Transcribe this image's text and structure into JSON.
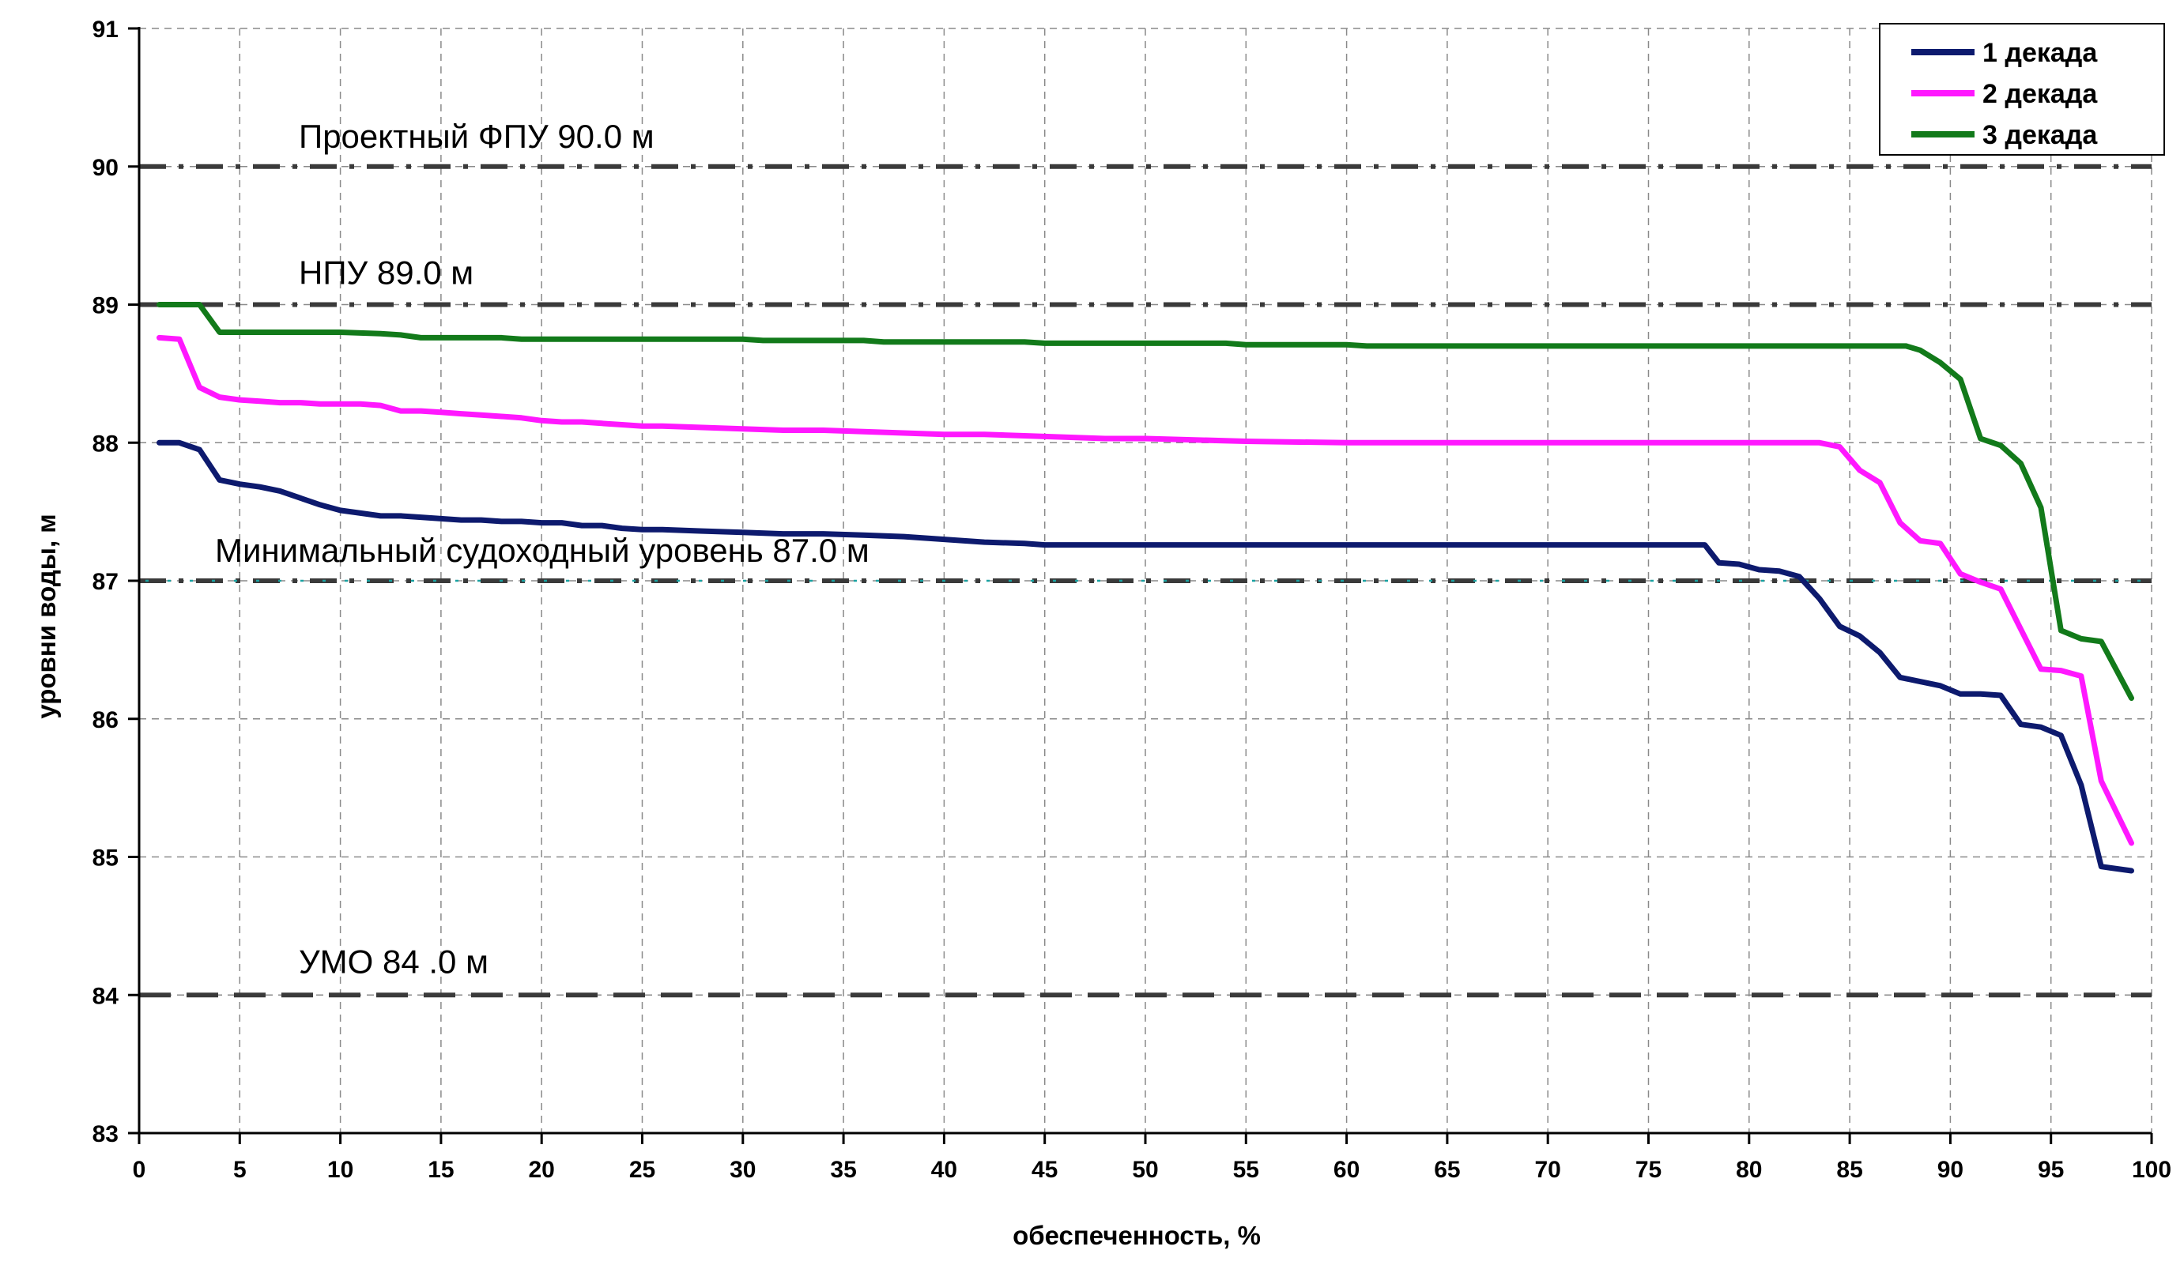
{
  "chart_data": {
    "type": "line",
    "title": "",
    "xlabel": "обеспеченность, %",
    "ylabel": "уровни воды, м",
    "xlim": [
      0,
      100
    ],
    "ylim": [
      83,
      91
    ],
    "x_ticks": [
      "0",
      "5",
      "10",
      "15",
      "20",
      "25",
      "30",
      "35",
      "40",
      "45",
      "50",
      "55",
      "60",
      "65",
      "70",
      "75",
      "80",
      "85",
      "90",
      "95",
      "100"
    ],
    "y_ticks": [
      "83",
      "84",
      "85",
      "86",
      "87",
      "88",
      "89",
      "90",
      "91"
    ],
    "grid": true,
    "legend": {
      "position": "top-right"
    },
    "reference_lines": [
      {
        "label": "Проектный ФПУ 90.0 м",
        "y": 90,
        "style": "dash-dot",
        "color": "#3a3a3a"
      },
      {
        "label": "НПУ 89.0 м",
        "y": 89,
        "style": "dash-dot",
        "color": "#3a3a3a"
      },
      {
        "label": "Минимальный судоходный уровень 87.0 м",
        "y": 87,
        "style": "dash-dot-teal",
        "color": "#3a3a3a"
      },
      {
        "label": "УМО 84 .0 м",
        "y": 84,
        "style": "dash",
        "color": "#3a3a3a"
      }
    ],
    "series": [
      {
        "name": "1 декада",
        "color": "#0d1a6e",
        "points": [
          [
            1,
            88.0
          ],
          [
            2,
            88.0
          ],
          [
            3,
            87.95
          ],
          [
            4,
            87.73
          ],
          [
            5,
            87.7
          ],
          [
            6,
            87.68
          ],
          [
            7,
            87.65
          ],
          [
            8,
            87.6
          ],
          [
            9,
            87.55
          ],
          [
            10,
            87.51
          ],
          [
            11,
            87.49
          ],
          [
            12,
            87.47
          ],
          [
            13,
            87.47
          ],
          [
            14,
            87.46
          ],
          [
            15,
            87.45
          ],
          [
            16,
            87.44
          ],
          [
            17,
            87.44
          ],
          [
            18,
            87.43
          ],
          [
            19,
            87.43
          ],
          [
            20,
            87.42
          ],
          [
            21,
            87.42
          ],
          [
            22,
            87.4
          ],
          [
            23,
            87.4
          ],
          [
            24,
            87.38
          ],
          [
            25,
            87.37
          ],
          [
            26,
            87.37
          ],
          [
            28,
            87.36
          ],
          [
            30,
            87.35
          ],
          [
            32,
            87.34
          ],
          [
            34,
            87.34
          ],
          [
            36,
            87.33
          ],
          [
            38,
            87.32
          ],
          [
            40,
            87.3
          ],
          [
            42,
            87.28
          ],
          [
            44,
            87.27
          ],
          [
            45,
            87.26
          ],
          [
            50,
            87.26
          ],
          [
            60,
            87.26
          ],
          [
            70,
            87.26
          ],
          [
            77.8,
            87.26
          ],
          [
            78.5,
            87.13
          ],
          [
            79.5,
            87.12
          ],
          [
            80.5,
            87.08
          ],
          [
            81.5,
            87.07
          ],
          [
            82.5,
            87.03
          ],
          [
            83.5,
            86.87
          ],
          [
            84.5,
            86.67
          ],
          [
            85.5,
            86.6
          ],
          [
            86.5,
            86.48
          ],
          [
            87.5,
            86.3
          ],
          [
            88.5,
            86.27
          ],
          [
            89.5,
            86.24
          ],
          [
            90.5,
            86.18
          ],
          [
            91.5,
            86.18
          ],
          [
            92.5,
            86.17
          ],
          [
            93.5,
            85.96
          ],
          [
            94.5,
            85.94
          ],
          [
            95.5,
            85.88
          ],
          [
            96.5,
            85.52
          ],
          [
            97.5,
            84.93
          ],
          [
            99,
            84.9
          ]
        ]
      },
      {
        "name": "2 декада",
        "color": "#ff18ff",
        "points": [
          [
            1,
            88.76
          ],
          [
            2,
            88.75
          ],
          [
            3,
            88.4
          ],
          [
            4,
            88.33
          ],
          [
            5,
            88.31
          ],
          [
            6,
            88.3
          ],
          [
            7,
            88.29
          ],
          [
            8,
            88.29
          ],
          [
            9,
            88.28
          ],
          [
            10,
            88.28
          ],
          [
            11,
            88.28
          ],
          [
            12,
            88.27
          ],
          [
            13,
            88.23
          ],
          [
            14,
            88.23
          ],
          [
            15,
            88.22
          ],
          [
            16,
            88.21
          ],
          [
            17,
            88.2
          ],
          [
            18,
            88.19
          ],
          [
            19,
            88.18
          ],
          [
            20,
            88.16
          ],
          [
            21,
            88.15
          ],
          [
            22,
            88.15
          ],
          [
            23,
            88.14
          ],
          [
            24,
            88.13
          ],
          [
            25,
            88.12
          ],
          [
            26,
            88.12
          ],
          [
            28,
            88.11
          ],
          [
            30,
            88.1
          ],
          [
            32,
            88.09
          ],
          [
            34,
            88.09
          ],
          [
            36,
            88.08
          ],
          [
            38,
            88.07
          ],
          [
            40,
            88.06
          ],
          [
            42,
            88.06
          ],
          [
            44,
            88.05
          ],
          [
            46,
            88.04
          ],
          [
            48,
            88.03
          ],
          [
            50,
            88.03
          ],
          [
            55,
            88.01
          ],
          [
            60,
            88.0
          ],
          [
            70,
            88.0
          ],
          [
            80,
            88.0
          ],
          [
            83.5,
            88.0
          ],
          [
            84.5,
            87.97
          ],
          [
            85.5,
            87.8
          ],
          [
            86.5,
            87.71
          ],
          [
            87.5,
            87.42
          ],
          [
            88.5,
            87.29
          ],
          [
            89.5,
            87.27
          ],
          [
            90.5,
            87.05
          ],
          [
            91.5,
            86.99
          ],
          [
            92.5,
            86.94
          ],
          [
            93.5,
            86.65
          ],
          [
            94.5,
            86.36
          ],
          [
            95.5,
            86.35
          ],
          [
            96.5,
            86.31
          ],
          [
            97.5,
            85.55
          ],
          [
            99,
            85.1
          ]
        ]
      },
      {
        "name": "3 декада",
        "color": "#127a1a",
        "points": [
          [
            1,
            89.0
          ],
          [
            2,
            89.0
          ],
          [
            3,
            89.0
          ],
          [
            4,
            88.8
          ],
          [
            5,
            88.8
          ],
          [
            10,
            88.8
          ],
          [
            12,
            88.79
          ],
          [
            13,
            88.78
          ],
          [
            14,
            88.76
          ],
          [
            15,
            88.76
          ],
          [
            18,
            88.76
          ],
          [
            19,
            88.75
          ],
          [
            20,
            88.75
          ],
          [
            30,
            88.75
          ],
          [
            31,
            88.74
          ],
          [
            36,
            88.74
          ],
          [
            37,
            88.73
          ],
          [
            44,
            88.73
          ],
          [
            45,
            88.72
          ],
          [
            54,
            88.72
          ],
          [
            55,
            88.71
          ],
          [
            60,
            88.71
          ],
          [
            61,
            88.7
          ],
          [
            70,
            88.7
          ],
          [
            80,
            88.7
          ],
          [
            87.8,
            88.7
          ],
          [
            88.5,
            88.67
          ],
          [
            89.5,
            88.58
          ],
          [
            90.5,
            88.46
          ],
          [
            91.5,
            88.03
          ],
          [
            92.5,
            87.98
          ],
          [
            93.5,
            87.85
          ],
          [
            94.5,
            87.53
          ],
          [
            95.5,
            86.64
          ],
          [
            96.5,
            86.58
          ],
          [
            97.5,
            86.56
          ],
          [
            99,
            86.15
          ]
        ]
      }
    ]
  }
}
